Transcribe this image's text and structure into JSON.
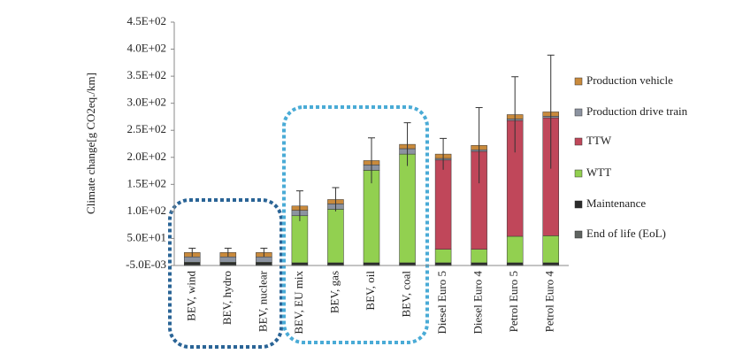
{
  "chart_data": {
    "type": "stacked_bar",
    "y_label": "Climate change[g CO2eq./km]",
    "categories": [
      "BEV, wind",
      "BEV, hydro",
      "BEV, nuclear",
      "BEV, EU mix",
      "BEV, gas",
      "BEV, oil",
      "BEV, coal",
      "Diesel Euro 5",
      "Diesel Euro 4",
      "Petrol Euro 5",
      "Petrol Euro 4"
    ],
    "series": [
      {
        "name": "End of life (EoL)",
        "color": "#5f6360",
        "values": [
          2,
          2,
          2,
          2,
          2,
          2,
          2,
          2,
          2,
          2,
          2
        ]
      },
      {
        "name": "Maintenance",
        "color": "#2b2b2b",
        "values": [
          3,
          3,
          3,
          3,
          3,
          3,
          3,
          3,
          3,
          3,
          3
        ]
      },
      {
        "name": "WTT",
        "color": "#92d050",
        "values": [
          1,
          1,
          1,
          87,
          99,
          171,
          201,
          25,
          25,
          49,
          50
        ]
      },
      {
        "name": "TTW",
        "color": "#c0475a",
        "values": [
          0,
          0,
          0,
          0,
          0,
          0,
          0,
          165,
          181,
          214,
          218
        ]
      },
      {
        "name": "Production drive train",
        "color": "#8c93a0",
        "values": [
          10,
          10,
          10,
          10,
          10,
          10,
          10,
          3,
          3,
          3,
          3
        ]
      },
      {
        "name": "Production vehicle",
        "color": "#c98a3c",
        "values": [
          8,
          8,
          8,
          8,
          8,
          8,
          8,
          8,
          8,
          8,
          8
        ]
      }
    ],
    "errors": [
      8,
      8,
      8,
      28,
      22,
      42,
      40,
      29,
      70,
      70,
      105
    ],
    "ylim": [
      -0.005,
      450
    ],
    "yticks": [
      {
        "value": -0.005,
        "label": "-5.0E-03"
      },
      {
        "value": 50,
        "label": "5.0E+01"
      },
      {
        "value": 100,
        "label": "1.0E+02"
      },
      {
        "value": 150,
        "label": "1.5E+02"
      },
      {
        "value": 200,
        "label": "2.0E+02"
      },
      {
        "value": 250,
        "label": "2.5E+02"
      },
      {
        "value": 300,
        "label": "3.0E+02"
      },
      {
        "value": 350,
        "label": "3.5E+02"
      },
      {
        "value": 400,
        "label": "4.0E+02"
      },
      {
        "value": 450,
        "label": "4.5E+02"
      }
    ],
    "grid": false
  }
}
